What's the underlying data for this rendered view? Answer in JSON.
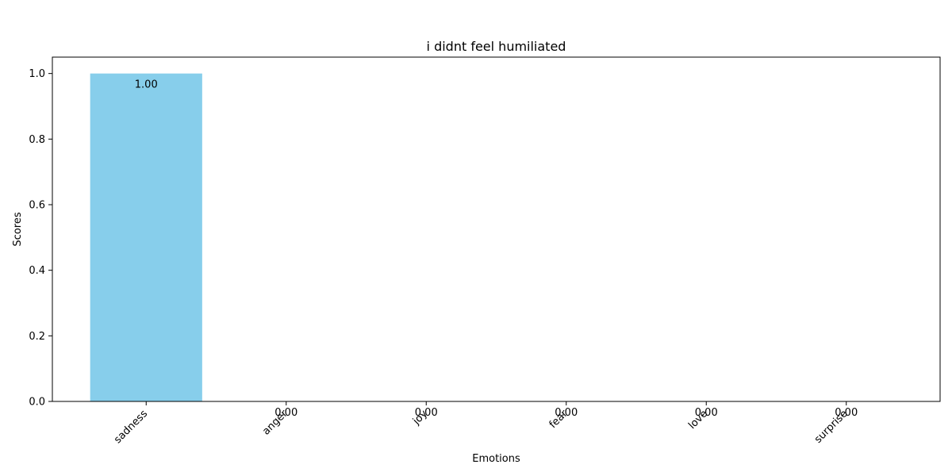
{
  "chart_data": {
    "type": "bar",
    "title": "i didnt feel humiliated",
    "xlabel": "Emotions",
    "ylabel": "Scores",
    "categories": [
      "sadness",
      "anger",
      "joy",
      "fear",
      "love",
      "surprise"
    ],
    "values": [
      1.0,
      0.0,
      0.0,
      0.0,
      0.0,
      0.0
    ],
    "value_labels": [
      "1.00",
      "0.00",
      "0.00",
      "0.00",
      "0.00",
      "0.00"
    ],
    "ylim": [
      0,
      1.05
    ],
    "yticks": [
      0.0,
      0.2,
      0.4,
      0.6,
      0.8,
      1.0
    ],
    "ytick_labels": [
      "0.0",
      "0.2",
      "0.4",
      "0.6",
      "0.8",
      "1.0"
    ],
    "bar_color": "#87ceeb",
    "grid": false,
    "legend": "none"
  }
}
